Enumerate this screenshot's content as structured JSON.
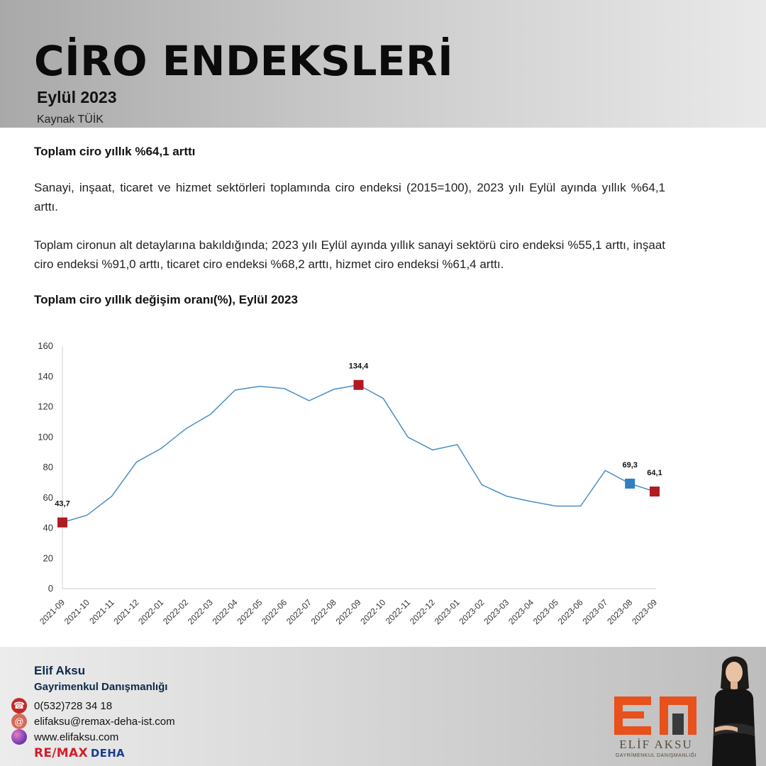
{
  "header": {
    "title": "CİRO ENDEKSLERİ",
    "subtitle": "Eylül 2023",
    "source": "Kaynak TÜİK"
  },
  "content": {
    "headline": "Toplam ciro yıllık %64,1 arttı",
    "paragraph1": "Sanayi, inşaat, ticaret ve hizmet sektörleri toplamında ciro endeksi (2015=100), 2023 yılı Eylül ayında yıllık %64,1 arttı.",
    "paragraph2": "Toplam cironun alt detaylarına bakıldığında; 2023 yılı Eylül ayında yıllık sanayi sektörü ciro endeksi %55,1 arttı, inşaat ciro endeksi %91,0 arttı, ticaret ciro endeksi %68,2 arttı, hizmet ciro endeksi %61,4 arttı.",
    "chart_title": "Toplam ciro yıllık değişim oranı(%), Eylül 2023"
  },
  "chart_data": {
    "type": "line",
    "title": "Toplam ciro yıllık değişim oranı(%), Eylül 2023",
    "xlabel": "",
    "ylabel": "",
    "ylim": [
      0,
      160
    ],
    "yticks": [
      0,
      20,
      40,
      60,
      80,
      100,
      120,
      140,
      160
    ],
    "grid": false,
    "categories": [
      "2021-09",
      "2021-10",
      "2021-11",
      "2021-12",
      "2022-01",
      "2022-02",
      "2022-03",
      "2022-04",
      "2022-05",
      "2022-06",
      "2022-07",
      "2022-08",
      "2022-09",
      "2022-10",
      "2022-11",
      "2022-12",
      "2023-01",
      "2023-02",
      "2023-03",
      "2023-04",
      "2023-05",
      "2023-06",
      "2023-07",
      "2023-08",
      "2023-09"
    ],
    "series": [
      {
        "values": [
          43.7,
          48.5,
          61.0,
          83.5,
          92.5,
          105.5,
          115.0,
          131.0,
          133.5,
          132.0,
          124.0,
          131.5,
          134.4,
          125.5,
          100.0,
          91.5,
          95.0,
          68.5,
          61.0,
          57.5,
          54.5,
          54.5,
          78.0,
          69.3,
          64.1
        ]
      }
    ],
    "highlight_points": [
      {
        "index": 0,
        "label": "43,7",
        "color": "#b01c22"
      },
      {
        "index": 12,
        "label": "134,4",
        "color": "#b01c22"
      },
      {
        "index": 23,
        "label": "69,3",
        "color": "#2f7fc1"
      },
      {
        "index": 24,
        "label": "64,1",
        "color": "#b01c22"
      }
    ],
    "line_color": "#4a90c4"
  },
  "footer": {
    "name": "Elif Aksu",
    "role": "Gayrimenkul Danışmanlığı",
    "phone": "0(532)728 34 18",
    "email": "elifaksu@remax-deha-ist.com",
    "website": "www.elifaksu.com",
    "remax_brand": "RE/MAX",
    "remax_office": "DEHA",
    "brand_wordmark": "ELİF AKSU",
    "brand_tagline": "GAYRİMENKUL DANIŞMANLIĞI",
    "brand_color": "#e8501c"
  }
}
